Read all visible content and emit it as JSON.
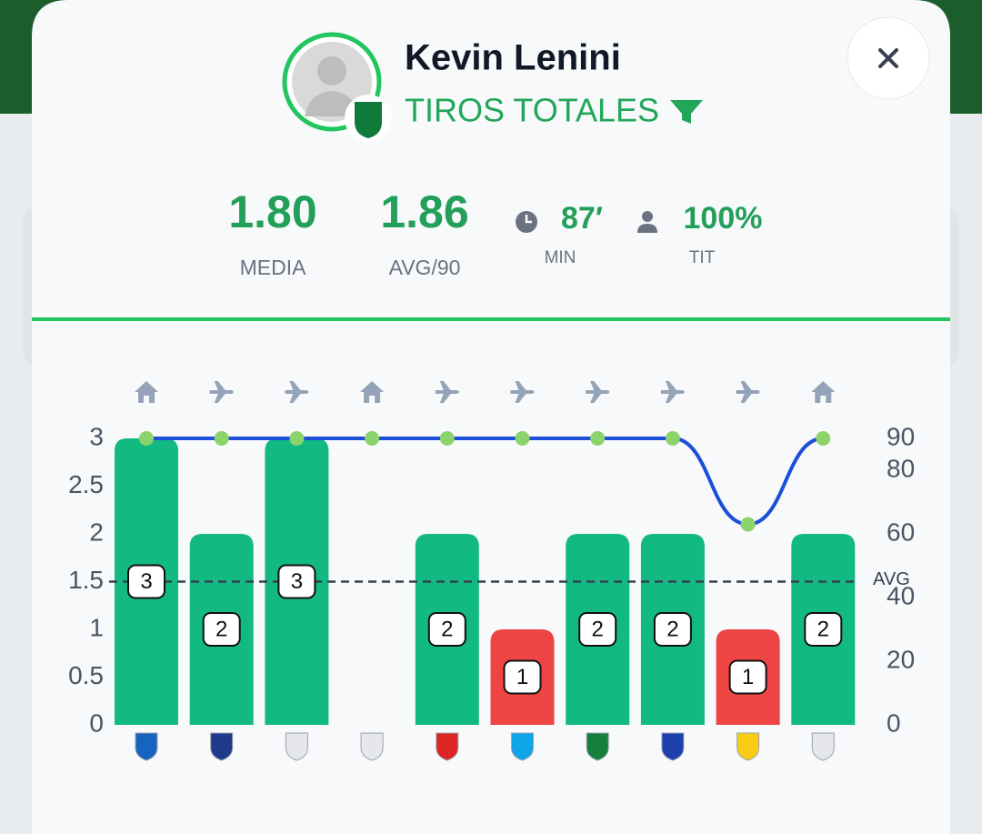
{
  "header": {
    "name": "Kevin Lenini",
    "stat": "TIROS TOTALES"
  },
  "stats": [
    {
      "value": "1.80",
      "label": "MEDIA"
    },
    {
      "value": "1.86",
      "label": "AVG/90"
    },
    {
      "value": "87′",
      "label": "MIN"
    },
    {
      "value": "100%",
      "label": "TIT"
    }
  ],
  "chart_data": {
    "type": "bar",
    "categories": [
      null,
      null,
      null,
      null,
      null,
      null,
      null,
      null,
      null,
      null
    ],
    "venue": [
      "home",
      "away",
      "away",
      "home",
      "away",
      "away",
      "away",
      "away",
      "away",
      "home"
    ],
    "series": [
      {
        "type": "bar",
        "values": [
          3,
          2,
          3,
          0,
          2,
          1,
          2,
          2,
          1,
          2
        ],
        "colors": [
          "#12b981",
          "#12b981",
          "#12b981",
          "#12b981",
          "#12b981",
          "#ef4444",
          "#12b981",
          "#12b981",
          "#ef4444",
          "#12b981"
        ]
      },
      {
        "type": "line",
        "axis": "y2",
        "color": "#1d4ed8",
        "point_color": "#8dd36b",
        "values": [
          90,
          90,
          90,
          90,
          90,
          90,
          90,
          90,
          63,
          90
        ]
      }
    ],
    "ylim": [
      0,
      3
    ],
    "yticks": [
      0,
      0.5,
      1,
      1.5,
      2,
      2.5,
      3
    ],
    "y2lim": [
      0,
      90
    ],
    "y2ticks": [
      0,
      20,
      40,
      60,
      80,
      90
    ],
    "avg_line": {
      "value": 1.5,
      "label": "AVG"
    }
  }
}
